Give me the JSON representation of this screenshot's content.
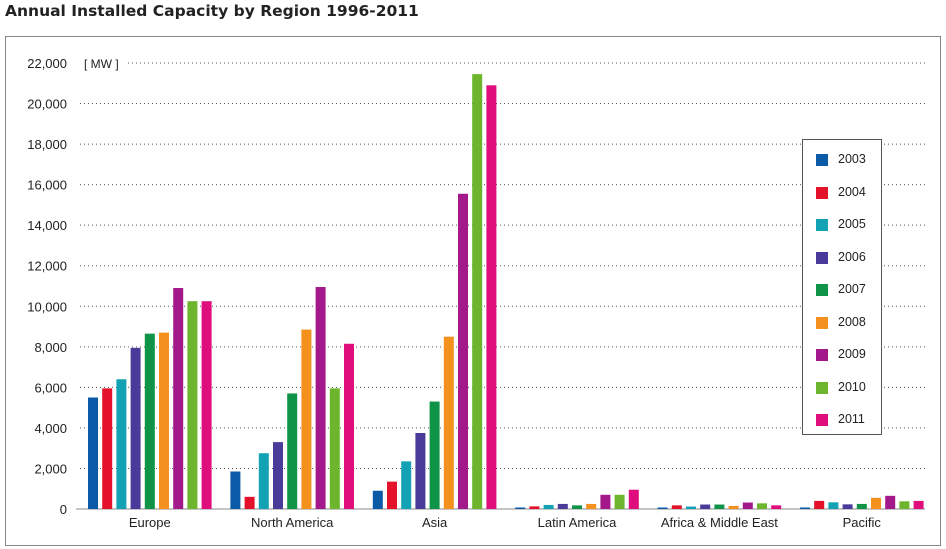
{
  "title": "Annual Installed Capacity by Region 1996-2011",
  "chart_data": {
    "type": "bar",
    "unit_label": "[ MW ]",
    "categories": [
      "Europe",
      "North America",
      "Asia",
      "Latin America",
      "Africa & Middle East",
      "Pacific"
    ],
    "series": [
      {
        "name": "2003",
        "color": "#0b5aa8",
        "values": [
          5500,
          1850,
          900,
          20,
          10,
          30
        ]
      },
      {
        "name": "2004",
        "color": "#e3122a",
        "values": [
          5950,
          600,
          1350,
          130,
          180,
          400
        ]
      },
      {
        "name": "2005",
        "color": "#13a2b3",
        "values": [
          6400,
          2750,
          2350,
          200,
          120,
          330
        ]
      },
      {
        "name": "2006",
        "color": "#4a3a99",
        "values": [
          7950,
          3300,
          3750,
          250,
          220,
          230
        ]
      },
      {
        "name": "2007",
        "color": "#0f9447",
        "values": [
          8650,
          5700,
          5300,
          180,
          220,
          250
        ]
      },
      {
        "name": "2008",
        "color": "#f4901e",
        "values": [
          8700,
          8850,
          8500,
          250,
          150,
          550
        ]
      },
      {
        "name": "2009",
        "color": "#a3198b",
        "values": [
          10900,
          10950,
          15550,
          700,
          320,
          650
        ]
      },
      {
        "name": "2010",
        "color": "#6cb52d",
        "values": [
          10250,
          5950,
          21450,
          700,
          280,
          380
        ]
      },
      {
        "name": "2011",
        "color": "#e00d7c",
        "values": [
          10250,
          8150,
          20900,
          950,
          180,
          400
        ]
      }
    ],
    "yticks": [
      "0",
      "2,000",
      "4,000",
      "6,000",
      "8,000",
      "10,000",
      "12,000",
      "14,000",
      "16,000",
      "18,000",
      "20,000",
      "22,000"
    ],
    "ylim": [
      0,
      22000
    ],
    "grid": "dotted horizontal",
    "legend_position": "right"
  }
}
